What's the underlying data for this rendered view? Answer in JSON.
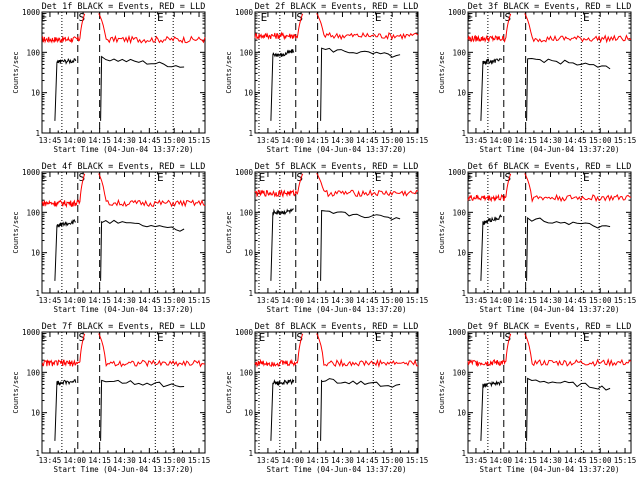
{
  "chart_data": {
    "type": "line",
    "start_time_label": "Start Time (04-Jun-04 13:37:20)",
    "ylabel": "Counts/sec",
    "yscale": "log",
    "ylim": [
      1,
      1000
    ],
    "y_ticks": [
      "1",
      "10",
      "100",
      "1000"
    ],
    "series_names": {
      "black": "Events",
      "red": "LLD"
    },
    "colors": {
      "events": "#000000",
      "lld": "#ff0000"
    },
    "markers": {
      "start": "S",
      "end": "E"
    },
    "panels": [
      {
        "title": "Det 1f BLACK = Events, RED = LLD",
        "x_ticks": [
          "13:45",
          "14:00",
          "14:15",
          "14:30",
          "14:45",
          "15:00",
          "15:15"
        ],
        "tmin": 13.67,
        "tmax": 15.31,
        "dotted_lines": [
          13.66,
          13.87,
          14.81,
          14.99
        ],
        "dashed_lines": [
          14.03,
          14.25
        ],
        "marker_positions": {
          "E_left": 13.69,
          "S": 14.07,
          "E_right": 14.86
        },
        "lld_level": 210,
        "lld_peak": 900,
        "lld_gap": [
          14.1,
          14.24
        ],
        "events_segments": [
          {
            "t": [
              13.8,
              13.82,
              13.86,
              14.01
            ],
            "v": [
              2,
              55,
              60,
              62
            ]
          },
          {
            "t": [
              14.26,
              14.27,
              15.1
            ],
            "v": [
              2,
              70,
              45
            ]
          }
        ]
      },
      {
        "title": "Det 2f BLACK = Events, RED = LLD",
        "x_ticks": [
          "13:45",
          "14:00",
          "14:15",
          "14:30",
          "14:45",
          "15:00",
          "15:15"
        ],
        "tmin": 13.62,
        "tmax": 15.26,
        "dotted_lines": [
          13.66,
          13.87,
          14.81,
          14.99
        ],
        "dashed_lines": [
          14.03,
          14.25
        ],
        "marker_positions": {
          "E_left": 13.71,
          "S": 14.07,
          "E_right": 14.86
        },
        "lld_level": 260,
        "lld_peak": 900,
        "lld_gap": [
          14.1,
          14.24
        ],
        "events_segments": [
          {
            "t": [
              13.78,
              13.8,
              13.9,
              14.01
            ],
            "v": [
              2,
              90,
              85,
              110
            ]
          },
          {
            "t": [
              14.28,
              14.29,
              15.08
            ],
            "v": [
              2,
              120,
              80
            ]
          }
        ]
      },
      {
        "title": "Det 3f BLACK = Events, RED = LLD",
        "x_ticks": [
          "13:45",
          "14:00",
          "14:15",
          "14:30",
          "14:45",
          "15:00",
          "15:15"
        ],
        "tmin": 13.67,
        "tmax": 15.31,
        "dotted_lines": [
          13.66,
          13.87,
          14.81,
          14.99
        ],
        "dashed_lines": [
          14.03,
          14.25
        ],
        "marker_positions": {
          "E_left": 13.69,
          "S": 14.07,
          "E_right": 14.86
        },
        "lld_level": 220,
        "lld_peak": 900,
        "lld_gap": [
          14.1,
          14.24
        ],
        "events_segments": [
          {
            "t": [
              13.8,
              13.82,
              13.86,
              14.01
            ],
            "v": [
              2,
              55,
              60,
              62
            ]
          },
          {
            "t": [
              14.26,
              14.27,
              15.1
            ],
            "v": [
              2,
              70,
              40
            ]
          }
        ]
      },
      {
        "title": "Det 4f BLACK = Events, RED = LLD",
        "x_ticks": [
          "13:45",
          "14:00",
          "14:15",
          "14:30",
          "14:45",
          "15:00",
          "15:15"
        ],
        "tmin": 13.67,
        "tmax": 15.31,
        "dotted_lines": [
          13.66,
          13.87,
          14.81,
          14.99
        ],
        "dashed_lines": [
          14.03,
          14.25
        ],
        "marker_positions": {
          "E_left": 13.69,
          "S": 14.07,
          "E_right": 14.86
        },
        "lld_level": 170,
        "lld_peak": 900,
        "lld_gap": [
          14.1,
          14.24
        ],
        "events_segments": [
          {
            "t": [
              13.8,
              13.82,
              13.86,
              14.01
            ],
            "v": [
              2,
              45,
              50,
              60
            ]
          },
          {
            "t": [
              14.26,
              14.27,
              15.1
            ],
            "v": [
              2,
              60,
              35
            ]
          }
        ]
      },
      {
        "title": "Det 5f BLACK = Events, RED = LLD",
        "x_ticks": [
          "13:45",
          "14:00",
          "14:15",
          "14:30",
          "14:45",
          "15:00",
          "15:15"
        ],
        "tmin": 13.62,
        "tmax": 15.26,
        "dotted_lines": [
          13.66,
          13.87,
          14.81,
          14.99
        ],
        "dashed_lines": [
          14.03,
          14.25
        ],
        "marker_positions": {
          "E_left": 13.69,
          "S": 14.07,
          "E_right": 14.86
        },
        "lld_level": 300,
        "lld_peak": 900,
        "lld_gap": [
          14.1,
          14.24
        ],
        "events_segments": [
          {
            "t": [
              13.78,
              13.8,
              13.9,
              14.01
            ],
            "v": [
              2,
              100,
              100,
              110
            ]
          },
          {
            "t": [
              14.28,
              14.29,
              15.08
            ],
            "v": [
              2,
              100,
              70
            ]
          }
        ]
      },
      {
        "title": "Det 6f BLACK = Events, RED = LLD",
        "x_ticks": [
          "13:45",
          "14:00",
          "14:15",
          "14:30",
          "14:45",
          "15:00",
          "15:15"
        ],
        "tmin": 13.67,
        "tmax": 15.31,
        "dotted_lines": [
          13.66,
          13.87,
          14.81,
          14.99
        ],
        "dashed_lines": [
          14.03,
          14.25
        ],
        "marker_positions": {
          "E_left": 13.69,
          "S": 14.07,
          "E_right": 14.86
        },
        "lld_level": 230,
        "lld_peak": 900,
        "lld_gap": [
          14.1,
          14.24
        ],
        "events_segments": [
          {
            "t": [
              13.8,
              13.82,
              13.86,
              14.01
            ],
            "v": [
              2,
              55,
              60,
              80
            ]
          },
          {
            "t": [
              14.26,
              14.27,
              15.1
            ],
            "v": [
              2,
              70,
              40
            ]
          }
        ]
      },
      {
        "title": "Det 7f BLACK = Events, RED = LLD",
        "x_ticks": [
          "13:45",
          "14:00",
          "14:15",
          "14:30",
          "14:45",
          "15:00",
          "15:15"
        ],
        "tmin": 13.67,
        "tmax": 15.31,
        "dotted_lines": [
          13.66,
          13.87,
          14.81,
          14.99
        ],
        "dashed_lines": [
          14.03,
          14.25
        ],
        "marker_positions": {
          "E_left": 13.69,
          "S": 14.07,
          "E_right": 14.86
        },
        "lld_level": 170,
        "lld_peak": 900,
        "lld_gap": [
          14.1,
          14.24
        ],
        "events_segments": [
          {
            "t": [
              13.8,
              13.82,
              13.86,
              14.01
            ],
            "v": [
              2,
              55,
              55,
              60
            ]
          },
          {
            "t": [
              14.26,
              14.27,
              15.1
            ],
            "v": [
              2,
              65,
              45
            ]
          }
        ]
      },
      {
        "title": "Det 8f BLACK = Events, RED = LLD",
        "x_ticks": [
          "13:45",
          "14:00",
          "14:15",
          "14:30",
          "14:45",
          "15:00",
          "15:15"
        ],
        "tmin": 13.62,
        "tmax": 15.26,
        "dotted_lines": [
          13.66,
          13.87,
          14.81,
          14.99
        ],
        "dashed_lines": [
          14.03,
          14.25
        ],
        "marker_positions": {
          "E_left": 13.69,
          "S": 14.07,
          "E_right": 14.86
        },
        "lld_level": 170,
        "lld_peak": 900,
        "lld_gap": [
          14.1,
          14.24
        ],
        "events_segments": [
          {
            "t": [
              13.78,
              13.8,
              13.9,
              14.01
            ],
            "v": [
              2,
              55,
              55,
              60
            ]
          },
          {
            "t": [
              14.28,
              14.29,
              15.08
            ],
            "v": [
              2,
              65,
              45
            ]
          }
        ]
      },
      {
        "title": "Det 9f BLACK = Events, RED = LLD",
        "x_ticks": [
          "13:45",
          "14:00",
          "14:15",
          "14:30",
          "14:45",
          "15:00",
          "15:15"
        ],
        "tmin": 13.67,
        "tmax": 15.31,
        "dotted_lines": [
          13.66,
          13.87,
          14.81,
          14.99
        ],
        "dashed_lines": [
          14.03,
          14.25
        ],
        "marker_positions": {
          "E_left": 13.69,
          "S": 14.07,
          "E_right": 14.86
        },
        "lld_level": 175,
        "lld_peak": 900,
        "lld_gap": [
          14.1,
          14.24
        ],
        "events_segments": [
          {
            "t": [
              13.8,
              13.82,
              13.86,
              14.01
            ],
            "v": [
              2,
              45,
              50,
              55
            ]
          },
          {
            "t": [
              14.26,
              14.27,
              15.1
            ],
            "v": [
              2,
              65,
              40
            ]
          }
        ]
      }
    ]
  }
}
